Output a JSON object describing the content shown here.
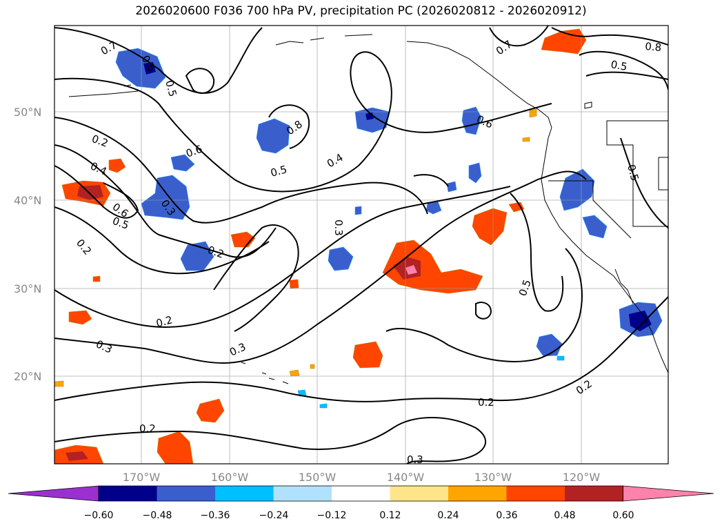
{
  "title": "2026020600 F036 700 hPa PV, precipitation PC (2026020812 - 2026020912)",
  "map": {
    "lat_labels": [
      "50°N",
      "40°N",
      "30°N",
      "20°N"
    ],
    "lon_labels": [
      "170°W",
      "160°W",
      "150°W",
      "140°W",
      "130°W",
      "120°W"
    ],
    "lat_range": [
      10,
      60
    ],
    "lon_range": [
      -180,
      -110
    ],
    "grid": true
  },
  "colorbar": {
    "ticks": [
      "−0.60",
      "−0.48",
      "−0.36",
      "−0.24",
      "−0.12",
      "0.12",
      "0.24",
      "0.36",
      "0.48",
      "0.60"
    ],
    "colors": [
      "#9b30d0",
      "#00008b",
      "#3a5fcd",
      "#00bfff",
      "#b0e2ff",
      "#ffffff",
      "#ffe58a",
      "#ffa500",
      "#ff4500",
      "#b22222",
      "#ff82ab"
    ],
    "extend": "both"
  },
  "contour_labels": [
    {
      "text": "0.7"
    },
    {
      "text": "0.6"
    },
    {
      "text": "0.5"
    },
    {
      "text": "0.2"
    },
    {
      "text": "0.4"
    },
    {
      "text": "0.6"
    },
    {
      "text": "0.5"
    },
    {
      "text": "0.3"
    },
    {
      "text": "0.2"
    },
    {
      "text": "0.6"
    },
    {
      "text": "0.8"
    },
    {
      "text": "0.5"
    },
    {
      "text": "0.4"
    },
    {
      "text": "0.3"
    },
    {
      "text": "0.7"
    },
    {
      "text": "0.8"
    },
    {
      "text": "0.5"
    },
    {
      "text": "0.6"
    },
    {
      "text": "0.5"
    },
    {
      "text": "0.2"
    },
    {
      "text": "0.3"
    },
    {
      "text": "0.3"
    },
    {
      "text": "0.2"
    },
    {
      "text": "0.5"
    },
    {
      "text": "0.2"
    },
    {
      "text": "0.2"
    },
    {
      "text": "0.3"
    }
  ]
}
